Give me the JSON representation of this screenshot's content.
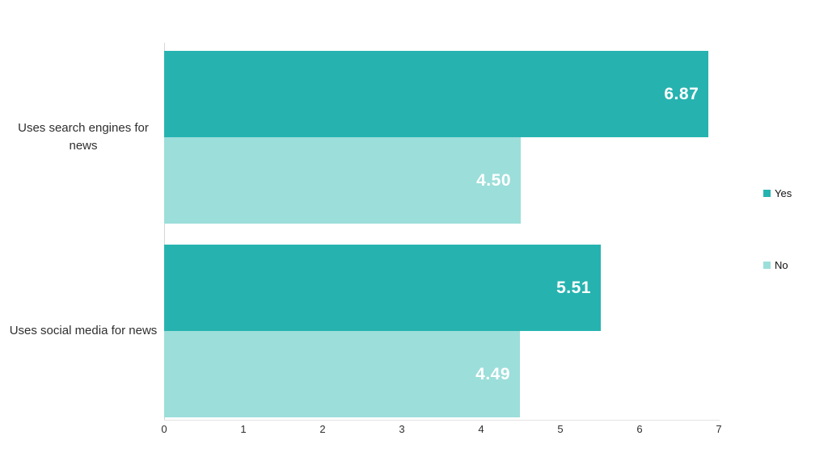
{
  "chart_data": {
    "type": "bar",
    "orientation": "horizontal",
    "title": "",
    "categories": [
      "Uses search engines for news",
      "Uses social media for news"
    ],
    "series": [
      {
        "name": "Yes",
        "color": "#26b3b0",
        "values": [
          6.87,
          5.51
        ]
      },
      {
        "name": "No",
        "color": "#9cdeda",
        "values": [
          4.5,
          4.49
        ]
      }
    ],
    "value_labels": [
      [
        "6.87",
        "5.51"
      ],
      [
        "4.50",
        "4.49"
      ]
    ],
    "xlabel": "",
    "ylabel": "",
    "xlim": [
      0,
      7
    ],
    "x_ticks": [
      "0",
      "1",
      "2",
      "3",
      "4",
      "5",
      "6",
      "7"
    ],
    "grid": false,
    "legend_position": "right",
    "value_label_color": "#ffffff",
    "axis_line_color": "#d6d6d6"
  }
}
